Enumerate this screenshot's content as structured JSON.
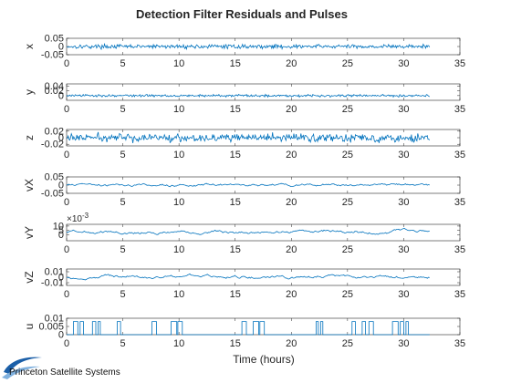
{
  "chart_data": {
    "type": "line",
    "title": "Detection Filter Residuals and Pulses",
    "xlabel": "Time (hours)",
    "xlim": [
      0,
      35
    ],
    "xticks": [
      "0",
      "5",
      "10",
      "15",
      "20",
      "25",
      "30",
      "35"
    ],
    "data_x_range": [
      0,
      32.3
    ],
    "grid": false,
    "line_color": "#0072BD",
    "panels": [
      {
        "ylabel": "x",
        "ylim": [
          -0.05,
          0.05
        ],
        "yticks": [
          "0.05",
          "0",
          "-0.05"
        ],
        "yvals": [
          0.05,
          0,
          -0.05
        ],
        "kind": "noise",
        "amplitude": 0.012
      },
      {
        "ylabel": "y",
        "ylim": [
          -0.02,
          0.05
        ],
        "yticks": [
          "0.04",
          "0.02",
          "0"
        ],
        "yvals": [
          0.04,
          0.02,
          0
        ],
        "kind": "noise",
        "amplitude": 0.005
      },
      {
        "ylabel": "z",
        "ylim": [
          -0.025,
          0.025
        ],
        "yticks": [
          "0.02",
          "0",
          "-0.02"
        ],
        "yvals": [
          0.02,
          0,
          -0.02
        ],
        "kind": "noise",
        "amplitude": 0.012
      },
      {
        "ylabel": "vX",
        "ylim": [
          -0.05,
          0.05
        ],
        "yticks": [
          "0.05",
          "0",
          "-0.05"
        ],
        "yvals": [
          0.05,
          0,
          -0.05
        ],
        "kind": "wander",
        "amplitude": 0.012
      },
      {
        "ylabel": "vY",
        "ylim": [
          -7,
          12
        ],
        "yticks": [
          "10",
          "5",
          "0"
        ],
        "yvals": [
          10,
          5,
          0
        ],
        "exponent_label": "×10",
        "exponent_power": "-3",
        "kind": "wander",
        "amplitude": 2.5,
        "offset": 3.5
      },
      {
        "ylabel": "vZ",
        "ylim": [
          -0.015,
          0.015
        ],
        "yticks": [
          "0.01",
          "0",
          "-0.01"
        ],
        "yvals": [
          0.01,
          0,
          -0.01
        ],
        "kind": "wander",
        "amplitude": 0.004
      },
      {
        "ylabel": "u",
        "ylim": [
          0,
          0.01
        ],
        "yticks": [
          "0.01",
          "0.005",
          "0"
        ],
        "yvals": [
          0.01,
          0.005,
          0
        ],
        "kind": "pulses",
        "pulse_height": 0.008,
        "pulses": [
          [
            0.6,
            1.0
          ],
          [
            1.2,
            1.5
          ],
          [
            2.3,
            2.6
          ],
          [
            2.8,
            3.0
          ],
          [
            4.5,
            4.8
          ],
          [
            7.6,
            8.0
          ],
          [
            9.3,
            9.8
          ],
          [
            9.9,
            10.3
          ],
          [
            15.6,
            16.0
          ],
          [
            16.6,
            17.1
          ],
          [
            17.2,
            17.6
          ],
          [
            22.2,
            22.4
          ],
          [
            22.6,
            22.8
          ],
          [
            25.4,
            25.7
          ],
          [
            26.3,
            26.6
          ],
          [
            26.9,
            27.3
          ],
          [
            29.0,
            29.5
          ],
          [
            29.7,
            30.0
          ],
          [
            30.2,
            30.4
          ]
        ]
      }
    ]
  },
  "logo": {
    "text": "Princeton Satellite Systems"
  }
}
